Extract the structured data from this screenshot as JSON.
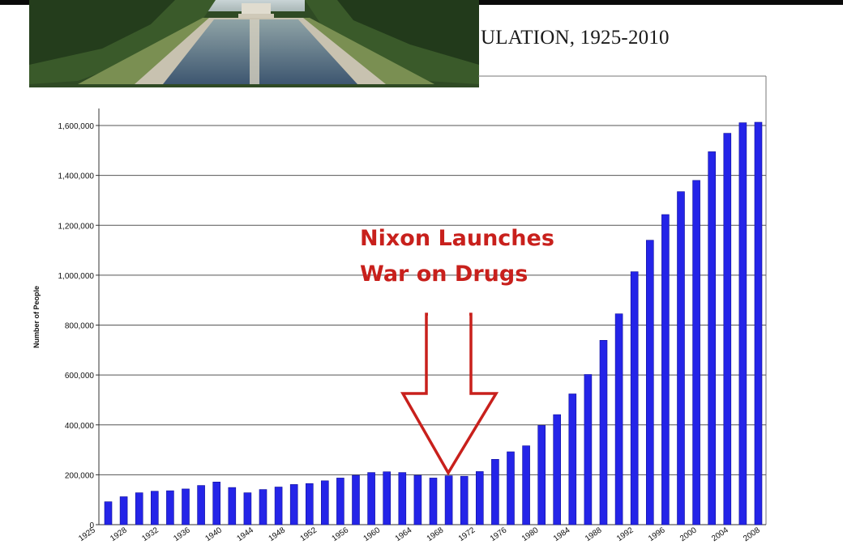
{
  "header": {
    "title": "ULATION, 1925-2010",
    "photo_icon": "lincoln-memorial-reflecting-pool-photo"
  },
  "annotation": {
    "line1": "Nixon Launches",
    "line2": "War on Drugs",
    "color": "#c8201c",
    "arrow_icon": "down-arrow-outline"
  },
  "chart_data": {
    "type": "bar",
    "title": "ULATION, 1925-2010",
    "ylabel": "Number of People",
    "xlabel": "",
    "ylim": [
      0,
      1600000
    ],
    "yticks": [
      0,
      200000,
      400000,
      600000,
      800000,
      1000000,
      1200000,
      1400000,
      1600000
    ],
    "ytick_labels": [
      "0",
      "200,000",
      "400,000",
      "600,000",
      "800,000",
      "1,000,000",
      "1,200,000",
      "1,400,000",
      "1,600,000"
    ],
    "xtick_labels": [
      "1925",
      "1928",
      "1932",
      "1936",
      "1940",
      "1944",
      "1948",
      "1952",
      "1956",
      "1960",
      "1964",
      "1968",
      "1972",
      "1976",
      "1980",
      "1984",
      "1988",
      "1992",
      "1996",
      "2000",
      "2004",
      "2008"
    ],
    "grid": true,
    "bar_color": "#2424e8",
    "categories": [
      "1925",
      "1927",
      "1929",
      "1931",
      "1933",
      "1935",
      "1937",
      "1939",
      "1941",
      "1943",
      "1945",
      "1947",
      "1949",
      "1951",
      "1953",
      "1955",
      "1957",
      "1959",
      "1961",
      "1963",
      "1965",
      "1967",
      "1969",
      "1971",
      "1973",
      "1975",
      "1977",
      "1979",
      "1981",
      "1983",
      "1985",
      "1987",
      "1989",
      "1991",
      "1993",
      "1995",
      "1997",
      "1999",
      "2001",
      "2003",
      "2005",
      "2007",
      "2009"
    ],
    "values": [
      92000,
      112000,
      128000,
      134000,
      136000,
      143000,
      157000,
      171000,
      149000,
      128000,
      141000,
      151000,
      161000,
      165000,
      176000,
      187000,
      198000,
      209000,
      212000,
      209000,
      198000,
      187000,
      196000,
      194000,
      213000,
      262000,
      292000,
      316000,
      398000,
      441000,
      524000,
      602000,
      739000,
      845000,
      1014000,
      1140000,
      1243000,
      1335000,
      1380000,
      1495000,
      1569000,
      1611000,
      1613000
    ]
  }
}
